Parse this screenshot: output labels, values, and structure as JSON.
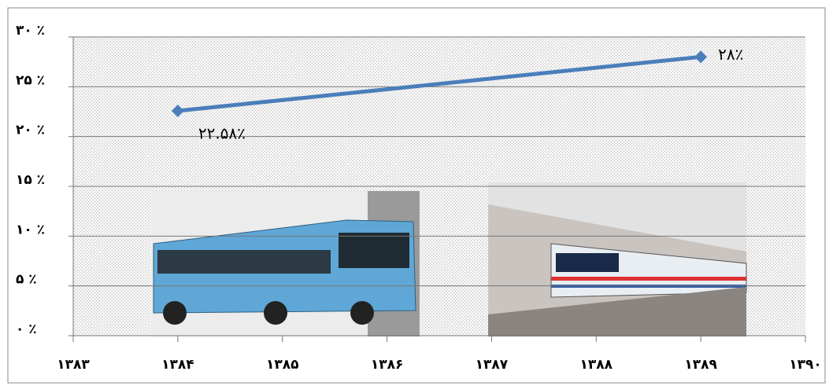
{
  "chart_data": {
    "type": "line",
    "x": [
      1384,
      1389
    ],
    "series": [
      {
        "color": "#4a7ebb",
        "values": [
          22.58,
          28
        ],
        "value_labels": [
          "۲۲.۵۸٪",
          "۲۸٪"
        ]
      }
    ],
    "xlim": [
      1383,
      1390
    ],
    "xticks": [
      {
        "value": 1383,
        "label": "۱۳۸۳"
      },
      {
        "value": 1384,
        "label": "۱۳۸۴"
      },
      {
        "value": 1385,
        "label": "۱۳۸۵"
      },
      {
        "value": 1386,
        "label": "۱۳۸۶"
      },
      {
        "value": 1387,
        "label": "۱۳۸۷"
      },
      {
        "value": 1388,
        "label": "۱۳۸۸"
      },
      {
        "value": 1389,
        "label": "۱۳۸۹"
      },
      {
        "value": 1390,
        "label": "۱۳۹۰"
      }
    ],
    "ylim": [
      0,
      30
    ],
    "yticks": [
      {
        "value": 0,
        "label": "۰ ٪"
      },
      {
        "value": 5,
        "label": "۵ ٪"
      },
      {
        "value": 10,
        "label": "۱۰ ٪"
      },
      {
        "value": 15,
        "label": "۱۵ ٪"
      },
      {
        "value": 20,
        "label": "۲۰ ٪"
      },
      {
        "value": 25,
        "label": "۲۵ ٪"
      },
      {
        "value": 30,
        "label": "۳۰ ٪"
      }
    ],
    "grid": true
  }
}
